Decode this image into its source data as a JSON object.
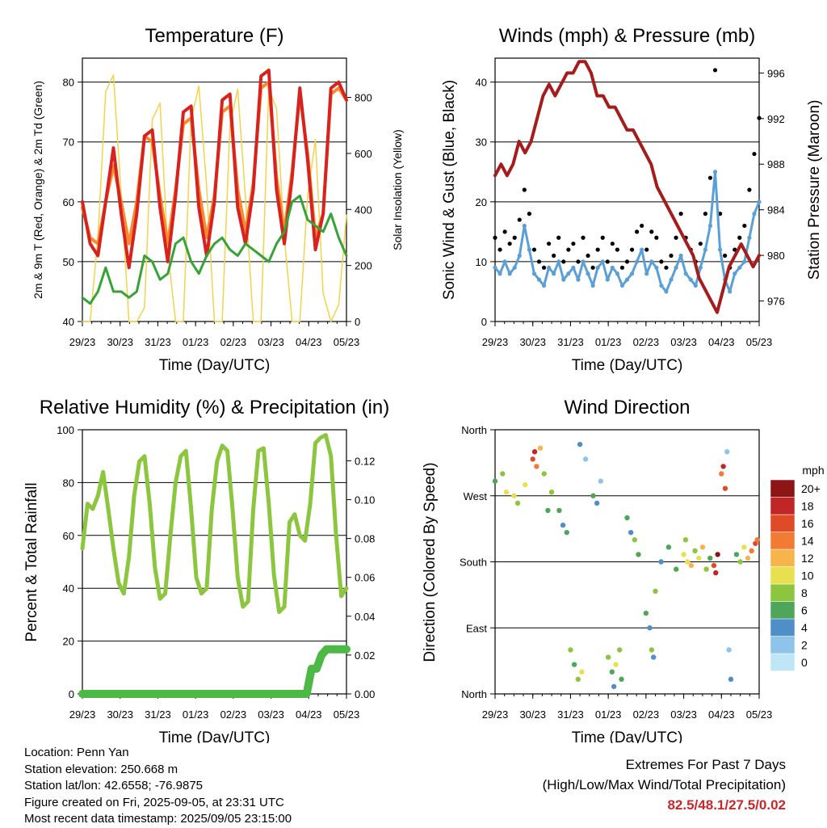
{
  "chart_data": [
    {
      "type": "line",
      "title": "Temperature (F)",
      "xlabel": "Time (Day/UTC)",
      "ylabel": "2m & 9m T (Red, Orange) & 2m Td (Green)",
      "y2label": "Solar Insolation (Yellow)",
      "x_ticks": [
        "29/23",
        "30/23",
        "31/23",
        "01/23",
        "02/23",
        "03/23",
        "04/23",
        "05/23"
      ],
      "ylim": [
        40,
        84
      ],
      "y_ticks": [
        40,
        50,
        60,
        70,
        80
      ],
      "y2lim": [
        0,
        940
      ],
      "y2_ticks": [
        0,
        200,
        400,
        600,
        800
      ],
      "grid": "horizontal",
      "series": [
        {
          "color": "#d7231f",
          "values": [
            60,
            53,
            51,
            60,
            69,
            58,
            49,
            58,
            71,
            72,
            59,
            50,
            61,
            75,
            76,
            59,
            51,
            60,
            77,
            78,
            59,
            53,
            62,
            81,
            82,
            62,
            53,
            64,
            79,
            67,
            52,
            58,
            79,
            80,
            77
          ]
        },
        {
          "color": "#f7892e",
          "values": [
            59,
            54,
            53,
            60,
            66,
            60,
            53,
            60,
            71,
            70,
            61,
            53,
            62,
            73,
            74,
            62,
            54,
            61,
            75,
            76,
            62,
            55,
            63,
            79,
            80,
            64,
            55,
            65,
            78,
            68,
            54,
            58,
            78,
            79,
            77
          ]
        },
        {
          "color": "#36a336",
          "values": [
            44,
            43,
            45,
            49,
            45,
            45,
            44,
            45,
            51,
            50,
            47,
            48,
            53,
            54,
            50,
            48,
            51,
            53,
            54,
            52,
            51,
            53,
            52,
            51,
            50,
            53,
            55,
            60,
            61,
            57,
            56,
            55,
            58,
            54,
            51
          ]
        },
        {
          "color": "#f2d34a",
          "values": [
            0,
            0,
            300,
            820,
            880,
            450,
            0,
            0,
            50,
            720,
            780,
            250,
            0,
            0,
            720,
            840,
            480,
            0,
            0,
            700,
            830,
            440,
            0,
            0,
            830,
            760,
            300,
            0,
            0,
            450,
            650,
            100,
            0,
            60,
            380
          ]
        }
      ]
    },
    {
      "type": "scatter",
      "title": "Winds (mph) & Pressure (mb)",
      "xlabel": "Time (Day/UTC)",
      "ylabel": "Sonic Wind & Gust (Blue, Black)",
      "y2label": "Station Pressure (Maroon)",
      "x_ticks": [
        "29/23",
        "30/23",
        "31/23",
        "01/23",
        "02/23",
        "03/23",
        "04/23",
        "05/23"
      ],
      "ylim": [
        0,
        44
      ],
      "y_ticks": [
        0,
        10,
        20,
        30,
        40
      ],
      "y2lim": [
        974.2,
        997.3
      ],
      "y2_ticks": [
        976,
        980,
        984,
        988,
        992,
        996
      ],
      "grid": "horizontal",
      "series": [
        {
          "color": "#5a9fd6",
          "values": [
            9,
            8,
            10,
            8,
            9,
            11,
            16,
            12,
            8,
            7,
            6,
            9,
            8,
            10,
            7,
            8,
            9,
            7,
            10,
            8,
            6,
            9,
            10,
            7,
            9,
            8,
            6,
            7,
            8,
            10,
            12,
            8,
            10,
            9,
            6,
            5,
            7,
            9,
            11,
            8,
            7,
            6,
            9,
            12,
            16,
            25,
            12,
            7,
            5,
            8,
            9,
            10,
            14,
            18,
            20
          ]
        },
        {
          "color": "#000000",
          "values": [
            14,
            12,
            15,
            13,
            14,
            17,
            22,
            18,
            12,
            10,
            9,
            13,
            11,
            14,
            10,
            12,
            13,
            10,
            14,
            11,
            9,
            12,
            14,
            10,
            13,
            12,
            9,
            10,
            12,
            15,
            16,
            12,
            15,
            14,
            10,
            9,
            11,
            14,
            18,
            14,
            12,
            10,
            13,
            18,
            24,
            42,
            18,
            11,
            9,
            12,
            14,
            16,
            22,
            28,
            34
          ]
        },
        {
          "color": "#a51c1c",
          "values": [
            987,
            988,
            987,
            988,
            990,
            989,
            990,
            992,
            994,
            995,
            994,
            995,
            996,
            996,
            997,
            997,
            996,
            994,
            994,
            993,
            993,
            992,
            991,
            991,
            990,
            989,
            988,
            986,
            985,
            984,
            983,
            982,
            981,
            980,
            978,
            977,
            976,
            975,
            977,
            979,
            980,
            981,
            980,
            979,
            980
          ]
        }
      ]
    },
    {
      "type": "line",
      "title": "Relative Humidity (%) & Precipitation (in)",
      "xlabel": "Time (Day/UTC)",
      "ylabel": "Percent & Total Rainfall",
      "x_ticks": [
        "29/23",
        "30/23",
        "31/23",
        "01/23",
        "02/23",
        "03/23",
        "04/23",
        "05/23"
      ],
      "ylim": [
        0,
        100
      ],
      "y_ticks": [
        0,
        20,
        40,
        60,
        80,
        100
      ],
      "y2lim": [
        0,
        0.136
      ],
      "y2_ticks": [
        "0.00",
        "0.02",
        "0.04",
        "0.06",
        "0.08",
        "0.10",
        "0.12"
      ],
      "grid": "horizontal",
      "series": [
        {
          "color": "#8cc63f",
          "values": [
            55,
            72,
            70,
            75,
            84,
            70,
            55,
            42,
            38,
            52,
            75,
            88,
            90,
            72,
            48,
            36,
            38,
            60,
            80,
            90,
            92,
            70,
            44,
            38,
            40,
            70,
            88,
            94,
            92,
            70,
            44,
            33,
            35,
            70,
            92,
            93,
            72,
            45,
            31,
            33,
            65,
            68,
            60,
            58,
            72,
            95,
            97,
            98,
            90,
            60,
            37,
            40
          ]
        },
        {
          "color": "#4cb944",
          "values": [
            0,
            0,
            0,
            0,
            0,
            0,
            0,
            0,
            0,
            0,
            0,
            0,
            0,
            0,
            0,
            0,
            0,
            0,
            0,
            0,
            0,
            0,
            0,
            0,
            0,
            0,
            0,
            0,
            0,
            0,
            0,
            0,
            0,
            0,
            0,
            0,
            0,
            0,
            0,
            0,
            0,
            0,
            0,
            0,
            0,
            0,
            0.013,
            0.013,
            0.02,
            0.023,
            0.023,
            0.023,
            0.023,
            0.023
          ]
        }
      ]
    },
    {
      "type": "scatter",
      "title": "Wind Direction",
      "xlabel": "Time (Day/UTC)",
      "ylabel": "Direction (Colored By Speed)",
      "x_ticks": [
        "29/23",
        "30/23",
        "31/23",
        "01/23",
        "02/23",
        "03/23",
        "04/23",
        "05/23"
      ],
      "y_ticks": [
        "North",
        "East",
        "South",
        "West",
        "North"
      ],
      "ylim": [
        0,
        360
      ],
      "grid": "horizontal",
      "legend_title": "mph",
      "legend_labels": [
        "0",
        "2",
        "4",
        "6",
        "8",
        "10",
        "12",
        "14",
        "16",
        "18",
        "20+"
      ],
      "legend_colors": [
        "#bfe6f7",
        "#8ec4ea",
        "#4e8fc9",
        "#4fa55a",
        "#8cc63f",
        "#e7e04f",
        "#f7b44b",
        "#f27a32",
        "#e14a26",
        "#c02626",
        "#8e1515"
      ],
      "points": [
        {
          "t": 0.0,
          "d": 290,
          "s": 6
        },
        {
          "t": 0.2,
          "d": 300,
          "s": 8
        },
        {
          "t": 0.3,
          "d": 275,
          "s": 10
        },
        {
          "t": 0.5,
          "d": 270,
          "s": 10
        },
        {
          "t": 0.6,
          "d": 260,
          "s": 8
        },
        {
          "t": 0.8,
          "d": 285,
          "s": 10
        },
        {
          "t": 1.0,
          "d": 320,
          "s": 16
        },
        {
          "t": 1.05,
          "d": 330,
          "s": 18
        },
        {
          "t": 1.1,
          "d": 310,
          "s": 14
        },
        {
          "t": 1.2,
          "d": 335,
          "s": 12
        },
        {
          "t": 1.3,
          "d": 300,
          "s": 8
        },
        {
          "t": 1.4,
          "d": 250,
          "s": 6
        },
        {
          "t": 1.5,
          "d": 275,
          "s": 8
        },
        {
          "t": 1.7,
          "d": 250,
          "s": 6
        },
        {
          "t": 1.8,
          "d": 230,
          "s": 4
        },
        {
          "t": 1.9,
          "d": 220,
          "s": 6
        },
        {
          "t": 2.0,
          "d": 60,
          "s": 8
        },
        {
          "t": 2.1,
          "d": 40,
          "s": 6
        },
        {
          "t": 2.2,
          "d": 20,
          "s": 8
        },
        {
          "t": 2.3,
          "d": 30,
          "s": 10
        },
        {
          "t": 2.25,
          "d": 340,
          "s": 4
        },
        {
          "t": 2.4,
          "d": 320,
          "s": 2
        },
        {
          "t": 2.6,
          "d": 270,
          "s": 6
        },
        {
          "t": 2.7,
          "d": 260,
          "s": 4
        },
        {
          "t": 2.8,
          "d": 290,
          "s": 2
        },
        {
          "t": 3.0,
          "d": 50,
          "s": 8
        },
        {
          "t": 3.1,
          "d": 30,
          "s": 6
        },
        {
          "t": 3.15,
          "d": 10,
          "s": 4
        },
        {
          "t": 3.2,
          "d": 40,
          "s": 10
        },
        {
          "t": 3.3,
          "d": 60,
          "s": 8
        },
        {
          "t": 3.35,
          "d": 20,
          "s": 6
        },
        {
          "t": 3.5,
          "d": 240,
          "s": 6
        },
        {
          "t": 3.6,
          "d": 220,
          "s": 4
        },
        {
          "t": 3.7,
          "d": 210,
          "s": 8
        },
        {
          "t": 3.8,
          "d": 190,
          "s": 6
        },
        {
          "t": 4.0,
          "d": 110,
          "s": 6
        },
        {
          "t": 4.1,
          "d": 90,
          "s": 4
        },
        {
          "t": 4.15,
          "d": 60,
          "s": 8
        },
        {
          "t": 4.2,
          "d": 50,
          "s": 4
        },
        {
          "t": 4.25,
          "d": 140,
          "s": 8
        },
        {
          "t": 4.4,
          "d": 180,
          "s": 4
        },
        {
          "t": 4.6,
          "d": 200,
          "s": 6
        },
        {
          "t": 4.8,
          "d": 170,
          "s": 6
        },
        {
          "t": 5.0,
          "d": 190,
          "s": 10
        },
        {
          "t": 5.05,
          "d": 210,
          "s": 8
        },
        {
          "t": 5.1,
          "d": 180,
          "s": 10
        },
        {
          "t": 5.2,
          "d": 175,
          "s": 12
        },
        {
          "t": 5.3,
          "d": 195,
          "s": 8
        },
        {
          "t": 5.4,
          "d": 185,
          "s": 10
        },
        {
          "t": 5.5,
          "d": 200,
          "s": 12
        },
        {
          "t": 5.6,
          "d": 170,
          "s": 8
        },
        {
          "t": 5.7,
          "d": 185,
          "s": 6
        },
        {
          "t": 5.8,
          "d": 175,
          "s": 16
        },
        {
          "t": 5.85,
          "d": 165,
          "s": 18
        },
        {
          "t": 5.9,
          "d": 190,
          "s": 20
        },
        {
          "t": 6.0,
          "d": 300,
          "s": 14
        },
        {
          "t": 6.05,
          "d": 310,
          "s": 18
        },
        {
          "t": 6.1,
          "d": 280,
          "s": 16
        },
        {
          "t": 6.15,
          "d": 330,
          "s": 2
        },
        {
          "t": 6.2,
          "d": 60,
          "s": 2
        },
        {
          "t": 6.25,
          "d": 20,
          "s": 4
        },
        {
          "t": 6.4,
          "d": 190,
          "s": 6
        },
        {
          "t": 6.5,
          "d": 180,
          "s": 8
        },
        {
          "t": 6.6,
          "d": 200,
          "s": 10
        },
        {
          "t": 6.7,
          "d": 185,
          "s": 12
        },
        {
          "t": 6.8,
          "d": 195,
          "s": 14
        },
        {
          "t": 6.9,
          "d": 205,
          "s": 16
        },
        {
          "t": 6.95,
          "d": 210,
          "s": 14
        }
      ]
    }
  ],
  "info": {
    "location": "Location: Penn Yan",
    "elevation": "Station elevation: 250.668 m",
    "latlon": "Station lat/lon: 42.6558; -76.9875",
    "created": "Figure created on Fri, 2025-09-05, at 23:31 UTC",
    "recent": "Most recent data timestamp: 2025/09/05 23:15:00"
  },
  "extremes": {
    "line1": "Extremes For Past 7 Days",
    "line2": "(High/Low/Max Wind/Total Precipitation)",
    "values": "82.5/48.1/27.5/0.02"
  }
}
